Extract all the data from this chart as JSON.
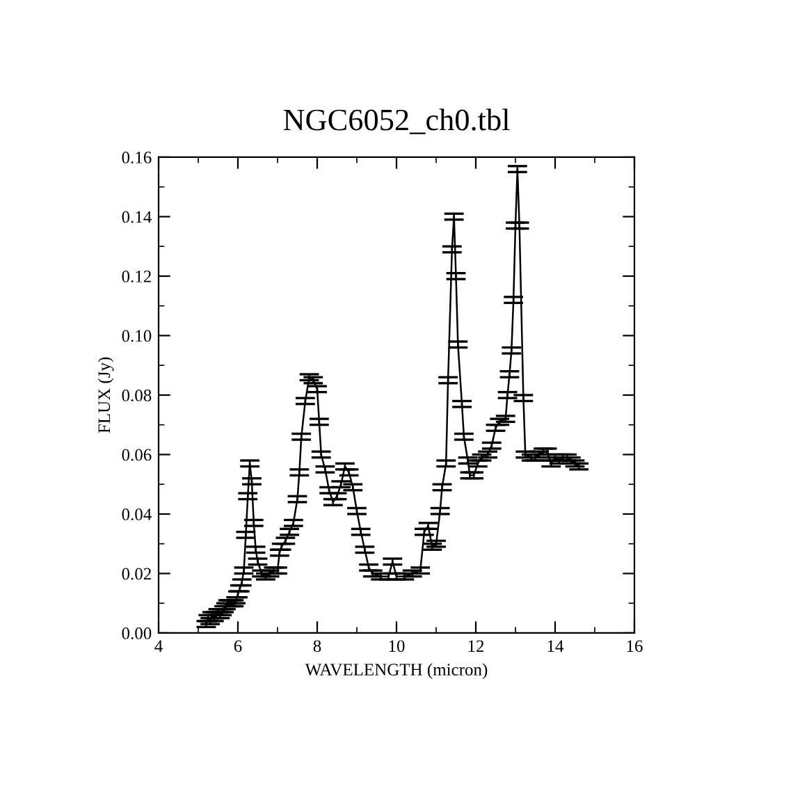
{
  "chart_data": {
    "type": "line",
    "title": "NGC6052_ch0.tbl",
    "xlabel": "WAVELENGTH (micron)",
    "ylabel": "FLUX (Jy)",
    "xlim": [
      4,
      16
    ],
    "xticks": [
      4,
      6,
      8,
      10,
      12,
      14,
      16
    ],
    "ylim": [
      0,
      0.16
    ],
    "yticks": [
      {
        "value": 0,
        "label": "0.00"
      },
      {
        "value": 0.02,
        "label": "0.02"
      },
      {
        "value": 0.04,
        "label": "0.04"
      },
      {
        "value": 0.06,
        "label": "0.06"
      },
      {
        "value": 0.08,
        "label": "0.08"
      },
      {
        "value": 0.1,
        "label": "0.10"
      },
      {
        "value": 0.12,
        "label": "0.12"
      },
      {
        "value": 0.14,
        "label": "0.14"
      },
      {
        "value": 0.16,
        "label": "0.16"
      }
    ],
    "grid": false,
    "legend": false,
    "marker": "none",
    "line_style": "solid",
    "series": [
      {
        "color": "#000000",
        "x": [
          5.2,
          5.25,
          5.3,
          5.35,
          5.4,
          5.45,
          5.5,
          5.55,
          5.6,
          5.65,
          5.7,
          5.75,
          5.8,
          5.85,
          5.9,
          5.95,
          6.0,
          6.05,
          6.1,
          6.15,
          6.2,
          6.25,
          6.3,
          6.35,
          6.4,
          6.45,
          6.5,
          6.6,
          6.7,
          6.8,
          6.9,
          7.0,
          7.05,
          7.1,
          7.2,
          7.3,
          7.4,
          7.5,
          7.55,
          7.6,
          7.7,
          7.8,
          7.9,
          8.0,
          8.05,
          8.1,
          8.2,
          8.3,
          8.4,
          8.5,
          8.6,
          8.7,
          8.8,
          8.9,
          9.0,
          9.1,
          9.2,
          9.3,
          9.4,
          9.6,
          9.8,
          9.9,
          10.0,
          10.2,
          10.4,
          10.6,
          10.7,
          10.8,
          10.9,
          11.0,
          11.1,
          11.15,
          11.25,
          11.3,
          11.4,
          11.45,
          11.5,
          11.55,
          11.65,
          11.7,
          11.8,
          11.85,
          11.95,
          12.05,
          12.15,
          12.3,
          12.4,
          12.5,
          12.6,
          12.75,
          12.8,
          12.85,
          12.9,
          12.95,
          13.0,
          13.05,
          13.1,
          13.2,
          13.25,
          13.4,
          13.5,
          13.6,
          13.7,
          13.8,
          13.9,
          14.0,
          14.1,
          14.2,
          14.3,
          14.4,
          14.5,
          14.6
        ],
        "values": [
          0.003,
          0.005,
          0.004,
          0.006,
          0.005,
          0.006,
          0.007,
          0.006,
          0.007,
          0.008,
          0.009,
          0.01,
          0.01,
          0.01,
          0.01,
          0.011,
          0.013,
          0.015,
          0.017,
          0.021,
          0.033,
          0.046,
          0.057,
          0.051,
          0.037,
          0.028,
          0.024,
          0.02,
          0.019,
          0.02,
          0.021,
          0.021,
          0.027,
          0.029,
          0.031,
          0.034,
          0.037,
          0.045,
          0.054,
          0.066,
          0.078,
          0.086,
          0.085,
          0.082,
          0.071,
          0.06,
          0.055,
          0.048,
          0.044,
          0.046,
          0.05,
          0.056,
          0.054,
          0.049,
          0.041,
          0.034,
          0.028,
          0.022,
          0.02,
          0.019,
          0.019,
          0.024,
          0.019,
          0.019,
          0.02,
          0.021,
          0.034,
          0.036,
          0.029,
          0.03,
          0.041,
          0.049,
          0.057,
          0.085,
          0.129,
          0.14,
          0.12,
          0.097,
          0.077,
          0.066,
          0.058,
          0.053,
          0.053,
          0.057,
          0.059,
          0.06,
          0.063,
          0.069,
          0.071,
          0.072,
          0.08,
          0.087,
          0.095,
          0.112,
          0.137,
          0.156,
          0.137,
          0.079,
          0.06,
          0.059,
          0.059,
          0.06,
          0.061,
          0.061,
          0.057,
          0.059,
          0.058,
          0.059,
          0.059,
          0.058,
          0.057,
          0.056
        ],
        "errors": [
          0.001,
          0.001,
          0.001,
          0.001,
          0.001,
          0.001,
          0.001,
          0.001,
          0.001,
          0.001,
          0.001,
          0.001,
          0.001,
          0.001,
          0.001,
          0.001,
          0.001,
          0.001,
          0.001,
          0.001,
          0.001,
          0.001,
          0.001,
          0.001,
          0.001,
          0.001,
          0.001,
          0.001,
          0.001,
          0.001,
          0.001,
          0.001,
          0.001,
          0.001,
          0.001,
          0.001,
          0.001,
          0.001,
          0.001,
          0.001,
          0.001,
          0.001,
          0.001,
          0.001,
          0.001,
          0.001,
          0.001,
          0.001,
          0.001,
          0.001,
          0.001,
          0.001,
          0.001,
          0.001,
          0.001,
          0.001,
          0.001,
          0.001,
          0.001,
          0.001,
          0.001,
          0.001,
          0.001,
          0.001,
          0.001,
          0.001,
          0.001,
          0.001,
          0.001,
          0.001,
          0.001,
          0.001,
          0.001,
          0.001,
          0.001,
          0.001,
          0.001,
          0.001,
          0.001,
          0.001,
          0.001,
          0.001,
          0.001,
          0.001,
          0.001,
          0.001,
          0.001,
          0.001,
          0.001,
          0.001,
          0.001,
          0.001,
          0.001,
          0.001,
          0.001,
          0.001,
          0.001,
          0.001,
          0.001,
          0.001,
          0.001,
          0.001,
          0.001,
          0.001,
          0.001,
          0.001,
          0.001,
          0.001,
          0.001,
          0.001,
          0.001,
          0.001
        ]
      }
    ]
  }
}
